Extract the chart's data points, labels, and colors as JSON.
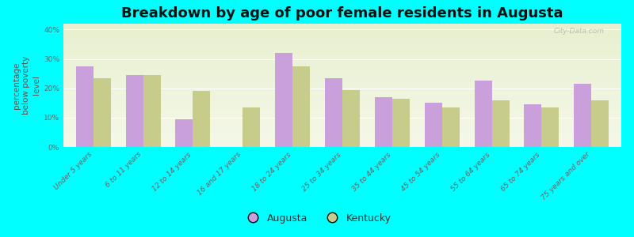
{
  "title": "Breakdown by age of poor female residents in Augusta",
  "ylabel": "percentage\nbelow poverty\nlevel",
  "background_color": "#00FFFF",
  "categories": [
    "Under 5 years",
    "6 to 11 years",
    "12 to 14 years",
    "16 and 17 years",
    "18 to 24 years",
    "25 to 34 years",
    "35 to 44 years",
    "45 to 54 years",
    "55 to 64 years",
    "65 to 74 years",
    "75 years and over"
  ],
  "augusta_values": [
    27.5,
    24.5,
    9.5,
    0,
    32.0,
    23.5,
    17.0,
    15.0,
    22.5,
    14.5,
    21.5
  ],
  "kentucky_values": [
    23.5,
    24.5,
    19.0,
    13.5,
    27.5,
    19.5,
    16.5,
    13.5,
    16.0,
    13.5,
    16.0
  ],
  "augusta_color": "#c9a0dc",
  "kentucky_color": "#c8cc8a",
  "bar_width": 0.35,
  "ylim": [
    0,
    42
  ],
  "yticks": [
    0,
    10,
    20,
    30,
    40
  ],
  "ytick_labels": [
    "0%",
    "10%",
    "20%",
    "30%",
    "40%"
  ],
  "title_fontsize": 13,
  "axis_label_fontsize": 7.5,
  "tick_fontsize": 6.5,
  "legend_fontsize": 9,
  "watermark": "City-Data.com"
}
